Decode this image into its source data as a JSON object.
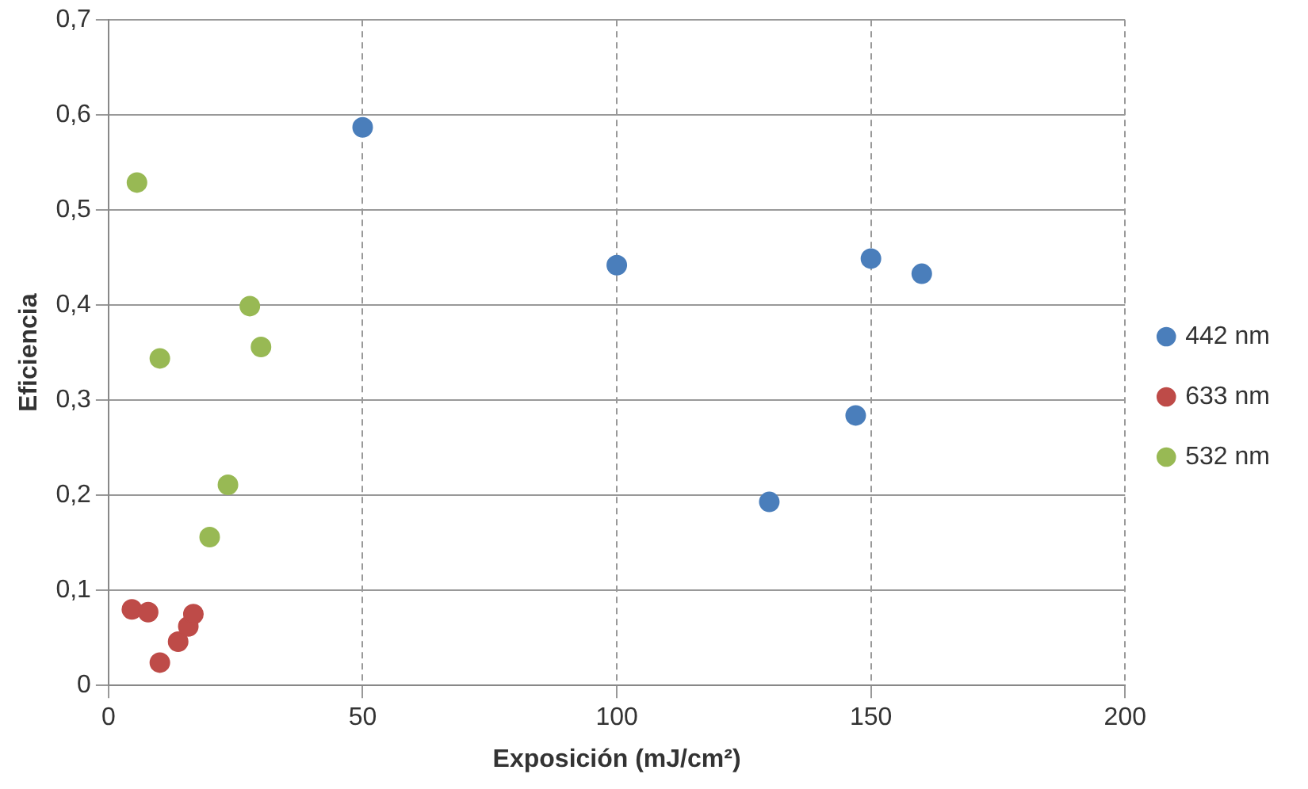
{
  "chart_data": {
    "type": "scatter",
    "xlabel": "Exposición (mJ/cm²)",
    "ylabel": "Eficiencia",
    "xlim": [
      0,
      200
    ],
    "xticks": [
      0,
      50,
      100,
      150,
      200
    ],
    "ylim": [
      0,
      0.7
    ],
    "yticks": [
      {
        "value": 0,
        "label": "0"
      },
      {
        "value": 0.1,
        "label": "0,1"
      },
      {
        "value": 0.2,
        "label": "0,2"
      },
      {
        "value": 0.3,
        "label": "0,3"
      },
      {
        "value": 0.4,
        "label": "0,4"
      },
      {
        "value": 0.5,
        "label": "0,5"
      },
      {
        "value": 0.6,
        "label": "0,6"
      },
      {
        "value": 0.7,
        "label": "0,7"
      }
    ],
    "grid": true,
    "legend": "right",
    "marker": "circle",
    "series": [
      {
        "name": "442 nm",
        "color": "#4a7ebb",
        "x": [
          50,
          100,
          130,
          147,
          150,
          160
        ],
        "values": [
          0.587,
          0.442,
          0.193,
          0.284,
          0.449,
          0.433
        ]
      },
      {
        "name": "633 nm",
        "color": "#be4b48",
        "x": [
          4.6,
          7.8,
          10.1,
          13.7,
          15.7,
          16.7
        ],
        "values": [
          0.08,
          0.077,
          0.024,
          0.046,
          0.062,
          0.075
        ]
      },
      {
        "name": "532 nm",
        "color": "#98b954",
        "x": [
          5.6,
          10.1,
          19.9,
          23.5,
          27.8,
          30
        ],
        "values": [
          0.529,
          0.344,
          0.156,
          0.211,
          0.399,
          0.356
        ]
      }
    ]
  }
}
